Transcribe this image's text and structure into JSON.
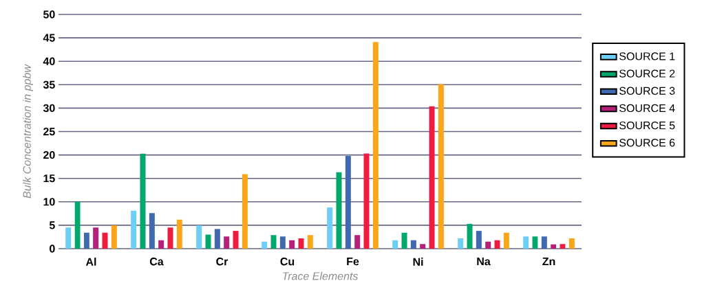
{
  "chart_data": {
    "type": "bar",
    "xlabel": "Trace Elements",
    "ylabel": "Bulk Concentration in ppbw",
    "categories": [
      "Al",
      "Ca",
      "Cr",
      "Cu",
      "Fe",
      "Ni",
      "Na",
      "Zn"
    ],
    "series": [
      {
        "name": "SOURCE 1",
        "color": "#6dcff6",
        "values": [
          4.5,
          8.1,
          5.0,
          1.5,
          8.8,
          1.8,
          2.2,
          2.6
        ]
      },
      {
        "name": "SOURCE 2",
        "color": "#00a86b",
        "values": [
          10.0,
          20.3,
          3.0,
          2.9,
          16.3,
          3.4,
          5.3,
          2.6
        ]
      },
      {
        "name": "SOURCE 3",
        "color": "#4169b0",
        "values": [
          3.4,
          7.6,
          4.2,
          2.6,
          19.8,
          1.8,
          3.8,
          2.6
        ]
      },
      {
        "name": "SOURCE 4",
        "color": "#b5217a",
        "values": [
          4.5,
          1.8,
          2.6,
          1.8,
          2.9,
          1.0,
          1.5,
          0.9
        ]
      },
      {
        "name": "SOURCE 5",
        "color": "#ed1c40",
        "values": [
          3.4,
          4.5,
          3.8,
          2.2,
          20.3,
          30.4,
          1.8,
          1.0
        ]
      },
      {
        "name": "SOURCE 6",
        "color": "#f9a61a",
        "values": [
          5.0,
          6.2,
          15.9,
          2.9,
          44.1,
          35.1,
          3.4,
          2.2
        ]
      }
    ],
    "ylim": [
      0,
      50
    ],
    "yticks": [
      0,
      5,
      10,
      15,
      20,
      25,
      30,
      35,
      40,
      45,
      50
    ],
    "grid": "y",
    "legend": "right"
  }
}
